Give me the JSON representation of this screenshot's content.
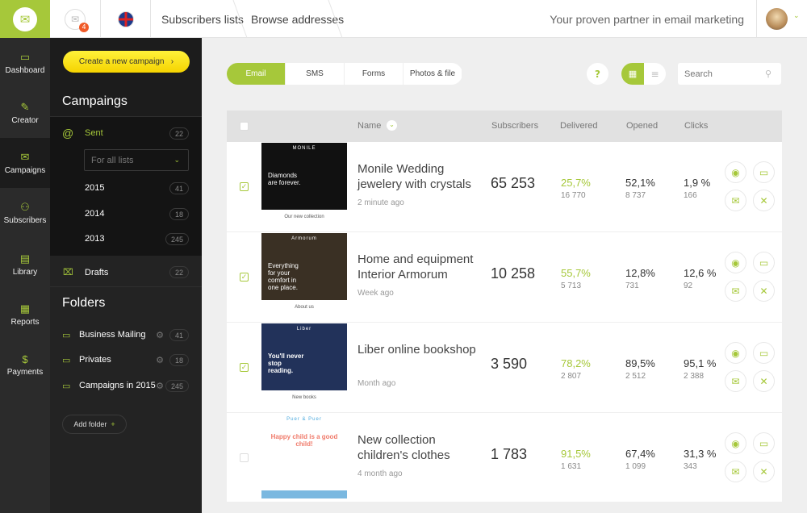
{
  "header": {
    "notifications": "4",
    "breadcrumbs": [
      "Subscribers lists",
      "Browse addresses"
    ],
    "tagline": "Your proven partner in email marketing"
  },
  "rail": [
    {
      "label": "Dashboard",
      "icon": "monitor-icon"
    },
    {
      "label": "Creator",
      "icon": "pencil-icon"
    },
    {
      "label": "Campaigns",
      "icon": "envelope-icon"
    },
    {
      "label": "Subscribers",
      "icon": "users-icon"
    },
    {
      "label": "Library",
      "icon": "library-icon"
    },
    {
      "label": "Reports",
      "icon": "reports-icon"
    },
    {
      "label": "Payments",
      "icon": "dollar-icon"
    }
  ],
  "panel": {
    "cta": "Create a new campaign",
    "campaigns_title": "Campaings",
    "sent": {
      "label": "Sent",
      "count": "22"
    },
    "filter": "For all lists",
    "years": [
      {
        "label": "2015",
        "count": "41"
      },
      {
        "label": "2014",
        "count": "18"
      },
      {
        "label": "2013",
        "count": "245"
      }
    ],
    "drafts": {
      "label": "Drafts",
      "count": "22"
    },
    "folders_title": "Folders",
    "folders": [
      {
        "label": "Business Mailing",
        "count": "41"
      },
      {
        "label": "Privates",
        "count": "18"
      },
      {
        "label": "Campaigns in 2015",
        "count": "245"
      }
    ],
    "add_folder": "Add folder"
  },
  "main": {
    "tabs": [
      "Email",
      "SMS",
      "Forms",
      "Photos & file"
    ],
    "help": "?",
    "search_placeholder": "Search",
    "columns": {
      "name": "Name",
      "subscribers": "Subscribers",
      "delivered": "Delivered",
      "opened": "Opened",
      "clicks": "Clicks"
    },
    "rows": [
      {
        "checked": true,
        "name": "Monile Wedding jewelery with crystals",
        "ago": "2 minute ago",
        "subscribers": "65 253",
        "delivered": "25,7%",
        "delivered_n": "16 770",
        "opened": "52,1%",
        "opened_n": "8 737",
        "clicks": "1,9 %",
        "clicks_n": "166",
        "thumb": {
          "brand": "MONILE",
          "headline": "Diamonds are forever.",
          "footer": "Our new collection"
        }
      },
      {
        "checked": true,
        "name": "Home and equipment Interior Armorum",
        "ago": "Week ago",
        "subscribers": "10 258",
        "delivered": "55,7%",
        "delivered_n": "5 713",
        "opened": "12,8%",
        "opened_n": "731",
        "clicks": "12,6 %",
        "clicks_n": "92",
        "thumb": {
          "brand": "Armorum",
          "headline": "Everything for your comfort in one place.",
          "footer": "About us"
        }
      },
      {
        "checked": true,
        "name": "Liber online bookshop",
        "ago": "Month ago",
        "subscribers": "3 590",
        "delivered": "78,2%",
        "delivered_n": "2 807",
        "opened": "89,5%",
        "opened_n": "2 512",
        "clicks": "95,1 %",
        "clicks_n": "2 388",
        "thumb": {
          "brand": "Liber",
          "headline": "You'll never stop reading.",
          "footer": "New books"
        }
      },
      {
        "checked": false,
        "name": "New collection children's clothes",
        "ago": "4 month ago",
        "subscribers": "1 783",
        "delivered": "91,5%",
        "delivered_n": "1 631",
        "opened": "67,4%",
        "opened_n": "1 099",
        "clicks": "31,3 %",
        "clicks_n": "343",
        "thumb": {
          "brand": "Puer & Puer",
          "headline": "Happy child is a good child!",
          "footer": ""
        }
      }
    ]
  },
  "colors": {
    "accent": "#a6c83a",
    "cta": "#f7dc12",
    "sidebar": "#232323"
  }
}
